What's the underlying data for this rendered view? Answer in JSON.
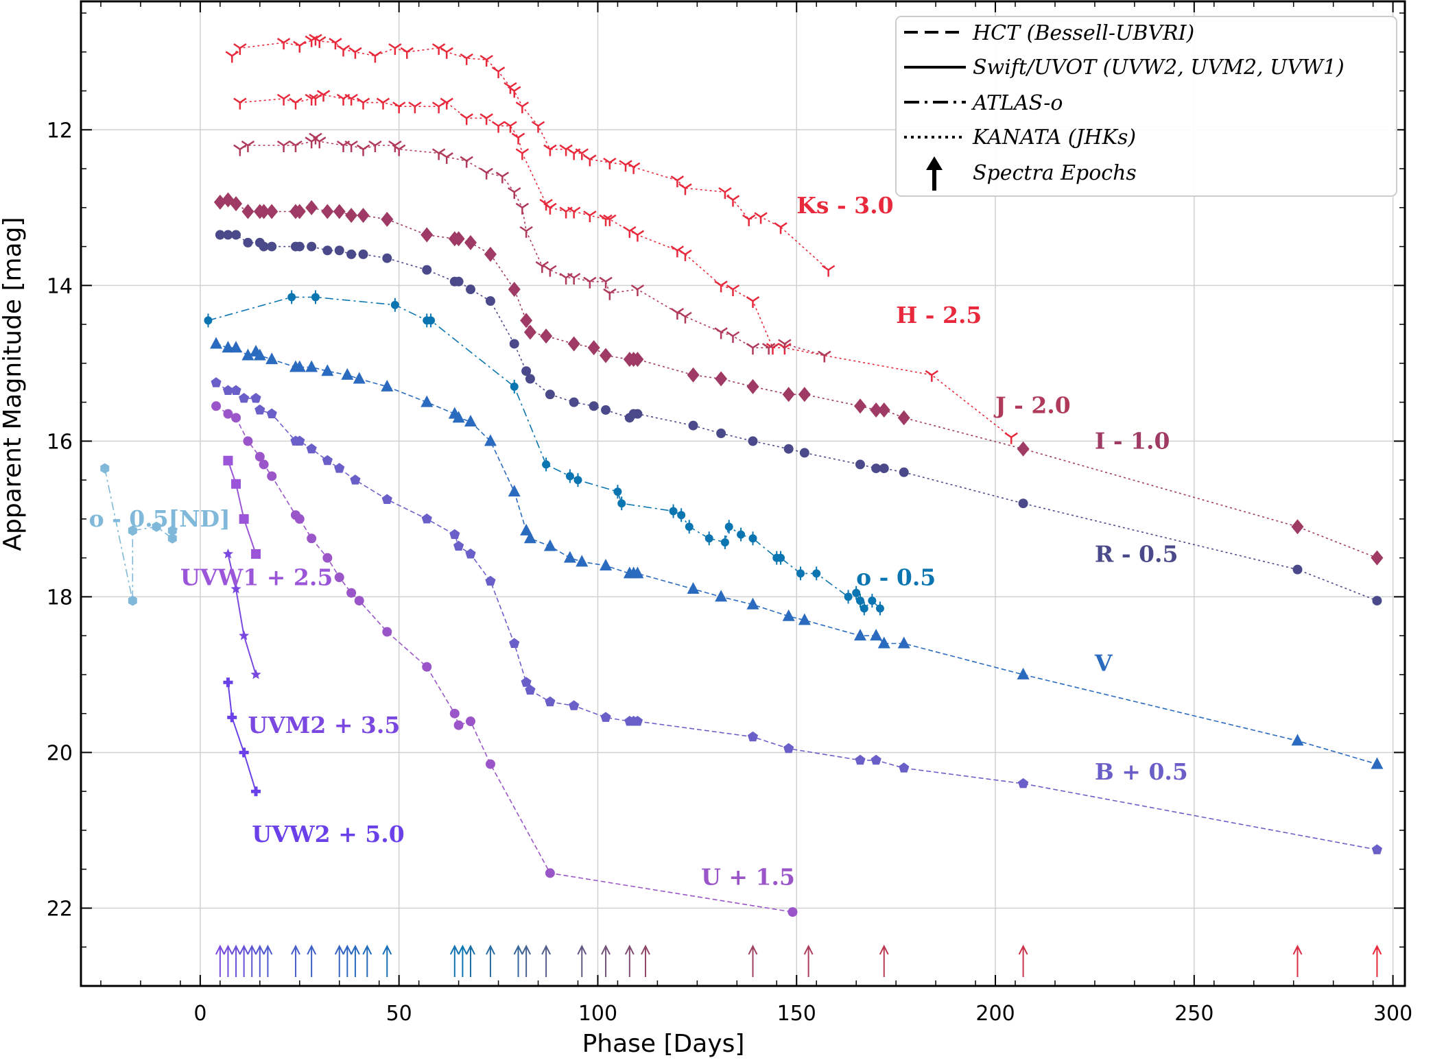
{
  "chart_data": {
    "type": "line",
    "xlabel": "Phase [Days]",
    "ylabel": "Apparent Magnitude [mag]",
    "xlim": [
      -30,
      303
    ],
    "ylim": [
      23.0,
      10.35
    ],
    "y_inverted": true,
    "xticks": [
      0,
      50,
      100,
      150,
      200,
      250,
      300
    ],
    "yticks": [
      12,
      14,
      16,
      18,
      20,
      22
    ],
    "grid": true,
    "legend_position": "top-right",
    "legend": [
      {
        "label": "HCT (Bessell-UBVRI)",
        "style": "dashed"
      },
      {
        "label": "Swift/UVOT (UVW2, UVM2, UVW1)",
        "style": "solid"
      },
      {
        "label": "ATLAS-o",
        "style": "dashdot"
      },
      {
        "label": "KANATA (JHKs)",
        "style": "dotted"
      },
      {
        "label": "Spectra Epochs",
        "style": "arrow"
      }
    ],
    "series": [
      {
        "name": "Ks - 3.0",
        "color": "#e8293c",
        "marker": "tri",
        "style": "dotted",
        "label_at": [
          150,
          13.07
        ],
        "x": [
          8,
          10,
          21,
          25,
          28,
          29,
          30,
          34,
          36,
          39,
          44,
          49,
          52,
          60,
          62,
          67,
          72,
          75,
          78,
          79,
          81,
          85,
          88,
          92,
          94,
          96,
          98,
          103,
          107,
          109,
          120,
          122,
          132,
          134,
          138,
          141,
          146,
          158
        ],
        "y": [
          11.05,
          10.95,
          10.88,
          10.92,
          10.85,
          10.83,
          10.86,
          10.88,
          10.97,
          11.0,
          11.05,
          10.95,
          11.0,
          10.95,
          11.0,
          11.08,
          11.1,
          11.25,
          11.45,
          11.5,
          11.7,
          11.95,
          12.25,
          12.25,
          12.3,
          12.3,
          12.38,
          12.42,
          12.45,
          12.48,
          12.65,
          12.75,
          12.8,
          12.9,
          13.15,
          13.12,
          13.25,
          13.8
        ]
      },
      {
        "name": "H - 2.5",
        "color": "#e8293c",
        "marker": "tri",
        "style": "dotted",
        "label_at": [
          175,
          14.48
        ],
        "x": [
          10,
          21,
          24,
          28,
          29,
          31,
          36,
          38,
          41,
          46,
          50,
          54,
          60,
          62,
          67,
          72,
          75,
          78,
          80,
          81,
          87,
          88,
          92,
          94,
          98,
          102,
          103,
          108,
          110,
          120,
          122,
          131,
          134,
          139,
          144,
          147,
          157,
          184,
          204
        ],
        "y": [
          11.65,
          11.6,
          11.65,
          11.6,
          11.6,
          11.55,
          11.6,
          11.6,
          11.65,
          11.65,
          11.7,
          11.7,
          11.7,
          11.65,
          11.85,
          11.85,
          11.95,
          11.95,
          12.1,
          12.3,
          12.95,
          13.0,
          13.05,
          13.05,
          13.1,
          13.15,
          13.15,
          13.3,
          13.35,
          13.55,
          13.6,
          14.0,
          14.05,
          14.2,
          14.8,
          14.8,
          14.9,
          15.15,
          15.95
        ]
      },
      {
        "name": "J - 2.0",
        "color": "#b03a5a",
        "marker": "tri",
        "style": "dotted",
        "label_at": [
          200,
          15.64
        ],
        "x": [
          10,
          12,
          21,
          24,
          28,
          29,
          30,
          36,
          38,
          41,
          44,
          49,
          50,
          60,
          62,
          67,
          72,
          76,
          79,
          81,
          82,
          86,
          88,
          92,
          94,
          98,
          102,
          103,
          110,
          120,
          122,
          131,
          134,
          139,
          143,
          147,
          157
        ],
        "y": [
          12.25,
          12.2,
          12.2,
          12.2,
          12.15,
          12.1,
          12.15,
          12.2,
          12.2,
          12.25,
          12.2,
          12.2,
          12.25,
          12.3,
          12.35,
          12.4,
          12.55,
          12.6,
          12.8,
          13.0,
          13.3,
          13.75,
          13.8,
          13.9,
          13.9,
          13.95,
          13.95,
          14.1,
          14.05,
          14.35,
          14.4,
          14.6,
          14.65,
          14.8,
          14.8,
          14.75,
          14.9
        ]
      },
      {
        "name": "I - 1.0",
        "color": "#9e3a63",
        "marker": "diamond",
        "style": "dotted",
        "label_at": [
          225,
          16.1
        ],
        "x": [
          5,
          7,
          9,
          12,
          15,
          16,
          18,
          24,
          25,
          28,
          32,
          35,
          38,
          41,
          47,
          57,
          64,
          65,
          68,
          73,
          79,
          82,
          83,
          87,
          94,
          99,
          102,
          108,
          109,
          110,
          124,
          131,
          139,
          148,
          152,
          166,
          170,
          172,
          177,
          207,
          276,
          296
        ],
        "y": [
          12.93,
          12.9,
          12.95,
          13.05,
          13.05,
          13.05,
          13.05,
          13.05,
          13.05,
          13.0,
          13.05,
          13.05,
          13.1,
          13.1,
          13.15,
          13.35,
          13.4,
          13.4,
          13.45,
          13.6,
          14.05,
          14.45,
          14.6,
          14.65,
          14.75,
          14.8,
          14.9,
          14.95,
          14.95,
          14.95,
          15.15,
          15.2,
          15.3,
          15.4,
          15.4,
          15.55,
          15.6,
          15.6,
          15.7,
          16.1,
          17.1,
          17.5
        ]
      },
      {
        "name": "R - 0.5",
        "color": "#4a4a8a",
        "marker": "circle",
        "style": "dotted",
        "label_at": [
          225,
          17.55
        ],
        "x": [
          5,
          7,
          9,
          12,
          15,
          16,
          18,
          24,
          25,
          28,
          32,
          35,
          38,
          41,
          47,
          57,
          64,
          65,
          68,
          73,
          79,
          82,
          83,
          88,
          94,
          99,
          102,
          108,
          109,
          110,
          124,
          131,
          139,
          148,
          152,
          166,
          170,
          172,
          177,
          207,
          276,
          296
        ],
        "y": [
          13.35,
          13.35,
          13.35,
          13.45,
          13.45,
          13.5,
          13.5,
          13.5,
          13.5,
          13.5,
          13.55,
          13.55,
          13.6,
          13.6,
          13.65,
          13.8,
          13.95,
          13.95,
          14.05,
          14.2,
          14.75,
          15.1,
          15.2,
          15.4,
          15.5,
          15.55,
          15.6,
          15.7,
          15.65,
          15.65,
          15.8,
          15.9,
          16.0,
          16.1,
          16.15,
          16.3,
          16.35,
          16.35,
          16.4,
          16.8,
          17.65,
          18.05
        ]
      },
      {
        "name": "o - 0.5",
        "color": "#0a75b0",
        "marker": "circle-err",
        "style": "dashdot",
        "label_at": [
          165,
          17.85
        ],
        "x": [
          2,
          23,
          29,
          49,
          57,
          58,
          79,
          87,
          93,
          95,
          105,
          106,
          119,
          121,
          123,
          128,
          132,
          133,
          136,
          139,
          145,
          146,
          151,
          155,
          163,
          165,
          166,
          167,
          169,
          171
        ],
        "y": [
          14.45,
          14.15,
          14.15,
          14.25,
          14.45,
          14.45,
          15.3,
          16.3,
          16.45,
          16.5,
          16.65,
          16.8,
          16.9,
          16.95,
          17.1,
          17.25,
          17.3,
          17.1,
          17.2,
          17.25,
          17.5,
          17.5,
          17.7,
          17.7,
          18.0,
          17.95,
          18.05,
          18.15,
          18.05,
          18.15
        ]
      },
      {
        "name": "o - 0.5[ND]",
        "color": "#7fb8d8",
        "marker": "hexagon",
        "style": "dashdot",
        "label_at": [
          -28,
          17.1
        ],
        "x": [
          -24,
          -17,
          -17,
          -11,
          -7,
          -7
        ],
        "y": [
          16.35,
          18.05,
          17.15,
          17.1,
          17.25,
          17.15
        ]
      },
      {
        "name": "V",
        "color": "#2a6bbf",
        "marker": "triangle",
        "style": "dashed",
        "label_at": [
          225,
          18.95
        ],
        "x": [
          4,
          7,
          9,
          12,
          14,
          15,
          18,
          24,
          25,
          28,
          32,
          37,
          40,
          47,
          57,
          64,
          65,
          68,
          73,
          79,
          82,
          83,
          88,
          93,
          96,
          102,
          108,
          109,
          110,
          124,
          131,
          139,
          148,
          152,
          166,
          170,
          172,
          177,
          207,
          276,
          296
        ],
        "y": [
          14.75,
          14.8,
          14.8,
          14.9,
          14.85,
          14.9,
          14.95,
          15.05,
          15.05,
          15.05,
          15.1,
          15.15,
          15.2,
          15.3,
          15.5,
          15.65,
          15.7,
          15.75,
          16.0,
          16.65,
          17.15,
          17.25,
          17.35,
          17.5,
          17.55,
          17.6,
          17.7,
          17.7,
          17.7,
          17.9,
          18.0,
          18.1,
          18.25,
          18.3,
          18.5,
          18.5,
          18.6,
          18.6,
          19.0,
          19.85,
          20.15
        ]
      },
      {
        "name": "B + 0.5",
        "color": "#6a5fc8",
        "marker": "pentagon",
        "style": "dashed",
        "label_at": [
          225,
          20.35
        ],
        "x": [
          4,
          7,
          9,
          11,
          14,
          15,
          18,
          24,
          25,
          28,
          32,
          35,
          39,
          47,
          57,
          64,
          65,
          68,
          73,
          79,
          82,
          83,
          88,
          94,
          102,
          108,
          109,
          110,
          139,
          148,
          166,
          170,
          177,
          207,
          296
        ],
        "y": [
          15.25,
          15.35,
          15.35,
          15.45,
          15.45,
          15.6,
          15.65,
          16.0,
          16.0,
          16.1,
          16.25,
          16.35,
          16.5,
          16.75,
          17.0,
          17.2,
          17.35,
          17.45,
          17.8,
          18.6,
          19.1,
          19.2,
          19.35,
          19.4,
          19.55,
          19.6,
          19.6,
          19.6,
          19.8,
          19.95,
          20.1,
          20.1,
          20.2,
          20.4,
          21.25
        ]
      },
      {
        "name": "U + 1.5",
        "color": "#9a55c8",
        "marker": "circle",
        "style": "dashed",
        "label_at": [
          126,
          21.7
        ],
        "x": [
          4,
          7,
          9,
          12,
          15,
          16,
          18,
          24,
          25,
          28,
          32,
          35,
          38,
          40,
          47,
          57,
          64,
          65,
          68,
          73,
          88,
          149
        ],
        "y": [
          15.55,
          15.65,
          15.7,
          16.0,
          16.2,
          16.3,
          16.45,
          16.95,
          17.0,
          17.25,
          17.5,
          17.75,
          17.95,
          18.05,
          18.45,
          18.9,
          19.5,
          19.65,
          19.6,
          20.15,
          21.55,
          22.05
        ]
      },
      {
        "name": "UVW1 + 2.5",
        "color": "#9a55d8",
        "marker": "square",
        "style": "solid",
        "label_at": [
          -5,
          17.85
        ],
        "x": [
          7,
          9,
          11,
          14
        ],
        "y": [
          16.25,
          16.55,
          17.0,
          17.45
        ]
      },
      {
        "name": "UVM2 + 3.5",
        "color": "#7a48e0",
        "marker": "star",
        "style": "solid",
        "label_at": [
          12,
          19.75
        ],
        "x": [
          7,
          9,
          11,
          14
        ],
        "y": [
          17.45,
          17.9,
          18.5,
          19.0
        ]
      },
      {
        "name": "UVW2 + 5.0",
        "color": "#6a40e8",
        "marker": "plus",
        "style": "solid",
        "label_at": [
          13,
          21.15
        ],
        "x": [
          7,
          8,
          11,
          14
        ],
        "y": [
          19.1,
          19.55,
          20.0,
          20.5
        ]
      }
    ],
    "spectra_epochs": [
      5,
      7,
      9,
      11,
      13,
      15,
      17,
      24,
      28,
      35,
      37,
      39,
      42,
      47,
      64,
      66,
      68,
      73,
      80,
      82,
      87,
      96,
      102,
      108,
      112,
      139,
      153,
      172,
      207,
      276,
      296
    ]
  }
}
